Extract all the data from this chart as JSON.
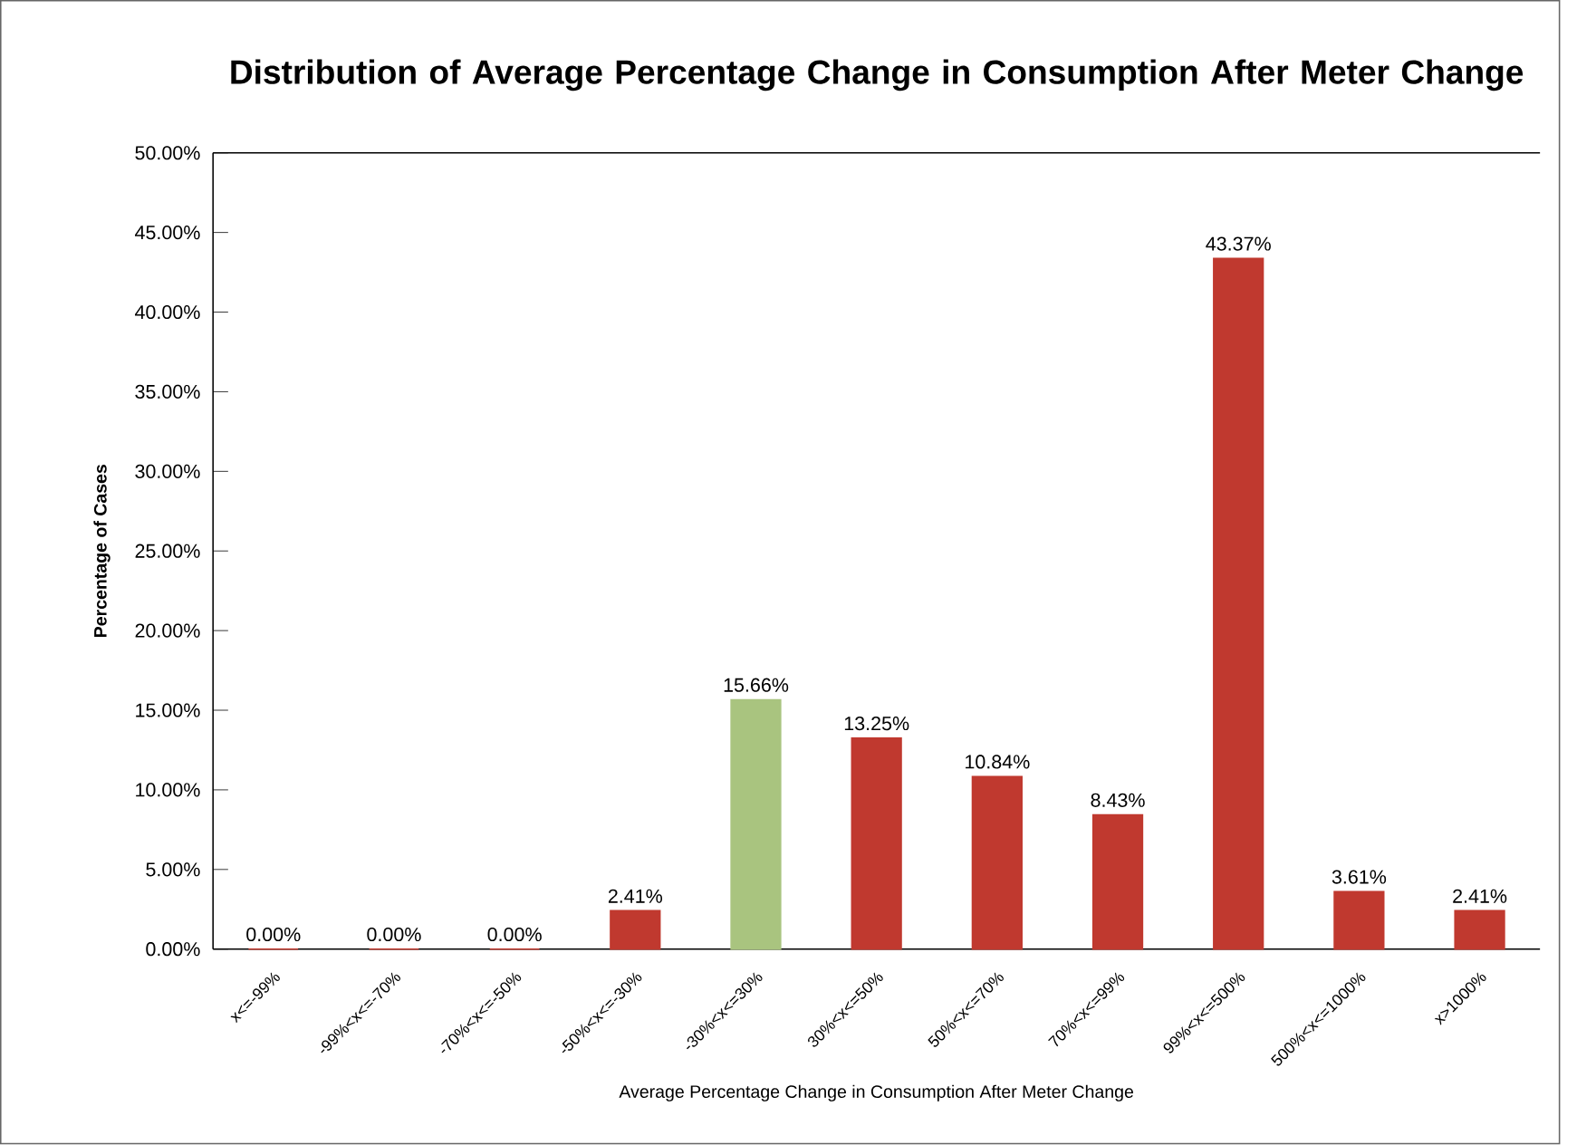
{
  "chart_data": {
    "type": "bar",
    "title": "Distribution of Average Percentage Change in Consumption After Meter Change",
    "xlabel": "Average Percentage Change in Consumption  After Meter Change",
    "ylabel": "Percentage of Cases",
    "categories": [
      "x<=-99%",
      "-99%<x<=-70%",
      "-70%<x<=-50%",
      "-50%<x<=-30%",
      "-30%<x<=30%",
      "30%<x<=50%",
      "50%<x<=70%",
      "70%<x<=99%",
      "99%<x<=500%",
      "500%<x<=1000%",
      "x>1000%"
    ],
    "values": [
      0,
      0,
      0,
      2.41,
      15.66,
      13.25,
      10.84,
      8.43,
      43.37,
      3.61,
      2.41
    ],
    "value_labels": [
      "0.00%",
      "0.00%",
      "0.00%",
      "2.41%",
      "15.66%",
      "13.25%",
      "10.84%",
      "8.43%",
      "43.37%",
      "3.61%",
      "2.41%"
    ],
    "colors": [
      "#c0392f",
      "#c0392f",
      "#c0392f",
      "#c0392f",
      "#a9c47f",
      "#c0392f",
      "#c0392f",
      "#c0392f",
      "#c0392f",
      "#c0392f",
      "#c0392f"
    ],
    "ylim": [
      0,
      50
    ],
    "yticks": [
      {
        "value": 0,
        "label": "0.00%"
      },
      {
        "value": 5,
        "label": "5.00%"
      },
      {
        "value": 10,
        "label": "10.00%"
      },
      {
        "value": 15,
        "label": "15.00%"
      },
      {
        "value": 20,
        "label": "20.00%"
      },
      {
        "value": 25,
        "label": "25.00%"
      },
      {
        "value": 30,
        "label": "30.00%"
      },
      {
        "value": 35,
        "label": "35.00%"
      },
      {
        "value": 40,
        "label": "40.00%"
      },
      {
        "value": 45,
        "label": "45.00%"
      },
      {
        "value": 50,
        "label": "50.00%"
      }
    ],
    "grid": false
  }
}
